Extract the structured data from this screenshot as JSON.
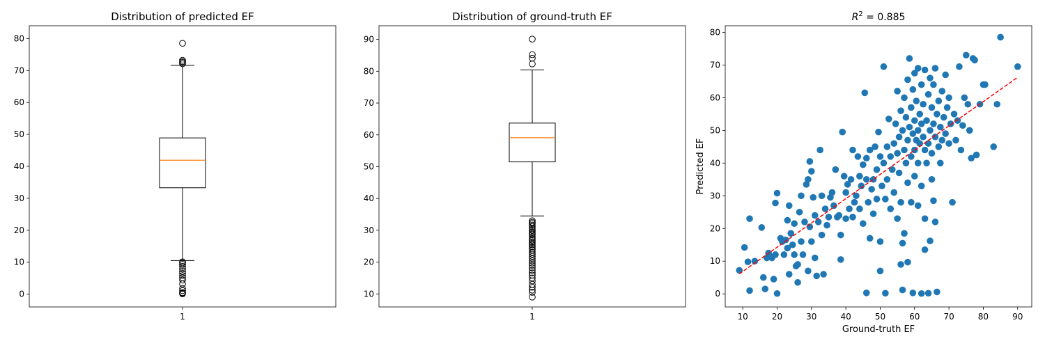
{
  "chart_data": [
    {
      "type": "box",
      "title": "Distribution of predicted EF",
      "title_is_math": false,
      "xlabel": "",
      "ylabel": "",
      "category_labels": [
        "1"
      ],
      "ylim": [
        -4,
        84
      ],
      "yticks": [
        0,
        10,
        20,
        30,
        40,
        50,
        60,
        70,
        80
      ],
      "box": {
        "whisker_low": 10.5,
        "q1": 33.3,
        "median": 41.9,
        "q3": 48.9,
        "whisker_high": 71.6
      },
      "outliers": [
        78.5,
        73.2,
        72.8,
        72.5,
        72.1,
        10.1,
        9.8,
        9.3,
        8.7,
        7.9,
        7.1,
        6.5,
        5.8,
        5.1,
        4.4,
        3.2,
        1.8,
        1.1,
        0.5,
        0.3,
        0.1
      ],
      "median_color": "#ff7f0e"
    },
    {
      "type": "box",
      "title": "Distribution of ground-truth EF",
      "title_is_math": false,
      "xlabel": "",
      "ylabel": "",
      "category_labels": [
        "1"
      ],
      "ylim": [
        5.9,
        94.3
      ],
      "yticks": [
        10,
        20,
        30,
        40,
        50,
        60,
        70,
        80,
        90
      ],
      "box": {
        "whisker_low": 34.5,
        "q1": 51.5,
        "median": 59.1,
        "q3": 63.7,
        "whisker_high": 80.4
      },
      "outliers": [
        90.1,
        85.2,
        84.1,
        82.3,
        33.0,
        32.5,
        32.1,
        31.6,
        31.1,
        30.5,
        30.0,
        29.5,
        29.0,
        28.6,
        28.0,
        27.4,
        26.9,
        26.4,
        25.9,
        25.4,
        24.8,
        24.3,
        23.8,
        23.1,
        22.5,
        21.8,
        21.1,
        20.4,
        19.7,
        19.0,
        18.2,
        17.4,
        16.6,
        15.9,
        15.0,
        14.1,
        13.0,
        12.1,
        11.2,
        10.5,
        9.0
      ],
      "median_color": "#ff7f0e"
    },
    {
      "type": "scatter",
      "title": "R2 = 0.885",
      "title_is_math": true,
      "title_parts": {
        "symbol": "R",
        "superscript": "2",
        "rest": " = 0.885"
      },
      "xlabel": "Ground-truth EF",
      "ylabel": "Predicted EF",
      "xlim": [
        4.9,
        94.1
      ],
      "ylim": [
        -4,
        82
      ],
      "xticks": [
        10,
        20,
        30,
        40,
        50,
        60,
        70,
        80,
        90
      ],
      "yticks": [
        0,
        10,
        20,
        30,
        40,
        50,
        60,
        70,
        80
      ],
      "point_color": "#1f77b4",
      "fit_line": {
        "color": "#ff0000",
        "style": "dashed",
        "x": [
          9.0,
          90.1
        ],
        "y": [
          6.1,
          66.3
        ]
      },
      "points": [
        [
          9,
          7.2
        ],
        [
          10.5,
          14.2
        ],
        [
          11.5,
          9.8
        ],
        [
          12,
          23
        ],
        [
          12,
          1
        ],
        [
          13.5,
          10
        ],
        [
          15.5,
          20.3
        ],
        [
          16,
          5
        ],
        [
          16.5,
          1.5
        ],
        [
          17,
          11
        ],
        [
          17.5,
          12.5
        ],
        [
          18,
          11.5
        ],
        [
          18.5,
          11
        ],
        [
          19,
          4.5
        ],
        [
          19.5,
          12
        ],
        [
          19.5,
          27.8
        ],
        [
          20,
          30.8
        ],
        [
          20,
          0.1
        ],
        [
          21,
          17
        ],
        [
          21.5,
          16
        ],
        [
          22,
          12
        ],
        [
          22.5,
          16.5
        ],
        [
          23,
          14
        ],
        [
          23,
          22.5
        ],
        [
          23.5,
          27
        ],
        [
          23.5,
          6
        ],
        [
          24,
          18.5
        ],
        [
          24.5,
          15
        ],
        [
          25,
          12
        ],
        [
          25,
          21.5
        ],
        [
          25.5,
          8.5
        ],
        [
          26,
          9
        ],
        [
          26,
          3.5
        ],
        [
          26.5,
          25
        ],
        [
          27,
          16
        ],
        [
          27,
          30
        ],
        [
          27.5,
          12
        ],
        [
          28,
          22
        ],
        [
          28.5,
          33.5
        ],
        [
          29,
          7
        ],
        [
          29,
          35
        ],
        [
          29.5,
          40.5
        ],
        [
          29.5,
          20.5
        ],
        [
          30,
          16
        ],
        [
          30,
          37.5
        ],
        [
          30.5,
          29.5
        ],
        [
          31,
          24
        ],
        [
          31,
          11
        ],
        [
          31.5,
          5.5
        ],
        [
          32,
          22
        ],
        [
          32.5,
          44
        ],
        [
          33,
          30
        ],
        [
          33,
          18
        ],
        [
          33.5,
          6
        ],
        [
          34,
          26
        ],
        [
          34.5,
          21
        ],
        [
          35,
          23.5
        ],
        [
          35.5,
          29.5
        ],
        [
          36,
          31
        ],
        [
          36.5,
          27
        ],
        [
          37,
          38
        ],
        [
          37.5,
          23.5
        ],
        [
          38,
          24
        ],
        [
          38.5,
          18
        ],
        [
          38.5,
          10.5
        ],
        [
          39,
          49.5
        ],
        [
          39.5,
          36
        ],
        [
          40,
          23
        ],
        [
          40,
          31
        ],
        [
          40.5,
          33.5
        ],
        [
          41,
          26
        ],
        [
          41.5,
          35
        ],
        [
          42,
          23.5
        ],
        [
          42,
          44
        ],
        [
          42.5,
          28
        ],
        [
          43,
          30
        ],
        [
          43.5,
          42
        ],
        [
          44,
          36
        ],
        [
          44,
          26
        ],
        [
          44.5,
          33
        ],
        [
          45,
          39.5
        ],
        [
          45,
          21.5
        ],
        [
          45.5,
          61.5
        ],
        [
          46,
          35
        ],
        [
          46,
          41.5
        ],
        [
          46,
          0.3
        ],
        [
          46.5,
          28
        ],
        [
          47,
          44
        ],
        [
          47,
          17
        ],
        [
          47.5,
          32
        ],
        [
          48,
          35
        ],
        [
          48,
          24.5
        ],
        [
          48.5,
          45
        ],
        [
          49,
          38
        ],
        [
          49,
          29
        ],
        [
          49.5,
          49.5
        ],
        [
          50,
          42
        ],
        [
          50,
          16
        ],
        [
          50,
          7
        ],
        [
          50.5,
          33
        ],
        [
          51,
          40
        ],
        [
          51,
          69.5
        ],
        [
          51.5,
          29
        ],
        [
          51.5,
          0.2
        ],
        [
          52,
          45
        ],
        [
          52,
          35
        ],
        [
          52.5,
          53.5
        ],
        [
          53,
          42
        ],
        [
          53,
          26
        ],
        [
          53.5,
          38
        ],
        [
          54,
          46
        ],
        [
          54,
          31
        ],
        [
          54.5,
          52
        ],
        [
          55,
          43
        ],
        [
          55,
          62
        ],
        [
          55,
          23
        ],
        [
          55.5,
          48
        ],
        [
          55.5,
          37
        ],
        [
          56,
          56
        ],
        [
          56,
          28
        ],
        [
          56,
          9
        ],
        [
          56.5,
          50
        ],
        [
          56.5,
          15.5
        ],
        [
          56.5,
          1.2
        ],
        [
          57,
          44
        ],
        [
          57,
          60
        ],
        [
          57,
          18.5
        ],
        [
          57.5,
          40
        ],
        [
          57.5,
          54
        ],
        [
          58,
          47
        ],
        [
          58,
          65.5
        ],
        [
          58,
          34
        ],
        [
          58,
          9.7
        ],
        [
          58.5,
          51
        ],
        [
          58.5,
          72
        ],
        [
          59,
          42
        ],
        [
          59,
          57
        ],
        [
          59,
          28
        ],
        [
          59.5,
          49
        ],
        [
          59.5,
          62.5
        ],
        [
          59.5,
          0.3
        ],
        [
          60,
          44
        ],
        [
          60,
          53
        ],
        [
          60,
          67.5
        ],
        [
          60,
          36
        ],
        [
          60.5,
          47
        ],
        [
          60.5,
          59
        ],
        [
          61,
          50
        ],
        [
          61,
          69
        ],
        [
          61,
          40
        ],
        [
          61,
          27
        ],
        [
          61.5,
          55
        ],
        [
          61.5,
          46
        ],
        [
          62,
          52
        ],
        [
          62,
          64
        ],
        [
          62,
          33
        ],
        [
          62,
          0.1
        ],
        [
          62.5,
          48
        ],
        [
          62.5,
          58
        ],
        [
          63,
          44
        ],
        [
          63,
          68.5
        ],
        [
          63,
          23
        ],
        [
          63,
          13.5
        ],
        [
          63.5,
          53
        ],
        [
          63.5,
          40
        ],
        [
          64,
          61
        ],
        [
          64,
          46
        ],
        [
          64,
          0.2
        ],
        [
          64.5,
          50
        ],
        [
          64.5,
          66
        ],
        [
          64.5,
          16.2
        ],
        [
          65,
          43
        ],
        [
          65,
          57
        ],
        [
          65,
          35
        ],
        [
          65.5,
          52
        ],
        [
          65.5,
          64
        ],
        [
          65.5,
          28.5
        ],
        [
          66,
          48
        ],
        [
          66,
          69
        ],
        [
          66,
          22
        ],
        [
          66.5,
          55
        ],
        [
          66.5,
          0.6
        ],
        [
          67,
          45
        ],
        [
          67,
          59
        ],
        [
          67.5,
          51
        ],
        [
          67.5,
          40
        ],
        [
          68,
          62
        ],
        [
          68,
          47
        ],
        [
          68.5,
          54
        ],
        [
          69,
          49
        ],
        [
          69,
          67
        ],
        [
          69.5,
          57
        ],
        [
          70,
          46
        ],
        [
          70,
          60
        ],
        [
          70.5,
          52
        ],
        [
          71,
          28
        ],
        [
          71.5,
          55
        ],
        [
          72,
          47
        ],
        [
          72.5,
          53
        ],
        [
          73,
          69.5
        ],
        [
          73.5,
          44
        ],
        [
          74,
          51.5
        ],
        [
          74.5,
          60
        ],
        [
          75,
          73
        ],
        [
          75.5,
          58
        ],
        [
          76,
          50
        ],
        [
          76.5,
          41.5
        ],
        [
          77,
          72
        ],
        [
          77.5,
          71.5
        ],
        [
          78,
          42.5
        ],
        [
          79,
          58
        ],
        [
          80,
          64
        ],
        [
          80.5,
          64
        ],
        [
          83,
          45
        ],
        [
          84,
          58
        ],
        [
          85,
          78.5
        ],
        [
          90,
          69.5
        ]
      ]
    }
  ]
}
